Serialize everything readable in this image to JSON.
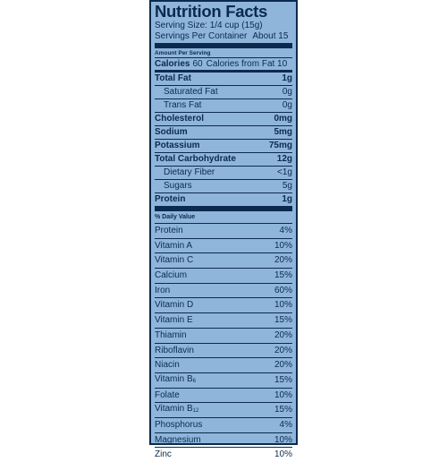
{
  "title": "Nutrition Facts",
  "serving_size": "Serving Size: 1/4 cup (15g)",
  "servings_per_container_label": "Servings Per Container",
  "servings_per_container_value": "About 15",
  "amount_per_serving": "Amount Per Serving",
  "calories_label": "Calories",
  "calories_value": "60",
  "calories_from_fat": "Calories from Fat 10",
  "nutrients": [
    {
      "name": "Total Fat",
      "value": "1g"
    },
    {
      "name": "Saturated Fat",
      "value": "0g"
    },
    {
      "name": "Trans Fat",
      "value": "0g"
    },
    {
      "name": "Cholesterol",
      "value": "0mg"
    },
    {
      "name": "Sodium",
      "value": "5mg"
    },
    {
      "name": "Potassium",
      "value": "75mg"
    },
    {
      "name": "Total Carbohydrate",
      "value": "12g"
    },
    {
      "name": "Dietary Fiber",
      "value": "<1g"
    },
    {
      "name": "Sugars",
      "value": "5g"
    },
    {
      "name": "Protein",
      "value": "1g"
    }
  ],
  "daily_value_header": "% Daily Value",
  "daily_values": [
    {
      "name": "Protein",
      "value": "4%"
    },
    {
      "name": "Vitamin A",
      "value": "10%"
    },
    {
      "name": "Vitamin C",
      "value": "20%"
    },
    {
      "name": "Calcium",
      "value": "15%"
    },
    {
      "name": "Iron",
      "value": "60%"
    },
    {
      "name": "Vitamin D",
      "value": "10%"
    },
    {
      "name": "Vitamin E",
      "value": "15%"
    },
    {
      "name": "Thiamin",
      "value": "20%"
    },
    {
      "name": "Riboflavin",
      "value": "20%"
    },
    {
      "name": "Niacin",
      "value": "20%"
    },
    {
      "name": "Vitamin B",
      "sub": "6",
      "value": "15%"
    },
    {
      "name": "Folate",
      "value": "10%"
    },
    {
      "name": "Vitamin B",
      "sub": "12",
      "value": "15%"
    },
    {
      "name": "Phosphorus",
      "value": "4%"
    },
    {
      "name": "Magnesium",
      "value": "10%"
    },
    {
      "name": "Zinc",
      "value": "10%"
    }
  ],
  "colors": {
    "panel_bg": "#8fb6da",
    "ink": "#0b2a4e"
  }
}
